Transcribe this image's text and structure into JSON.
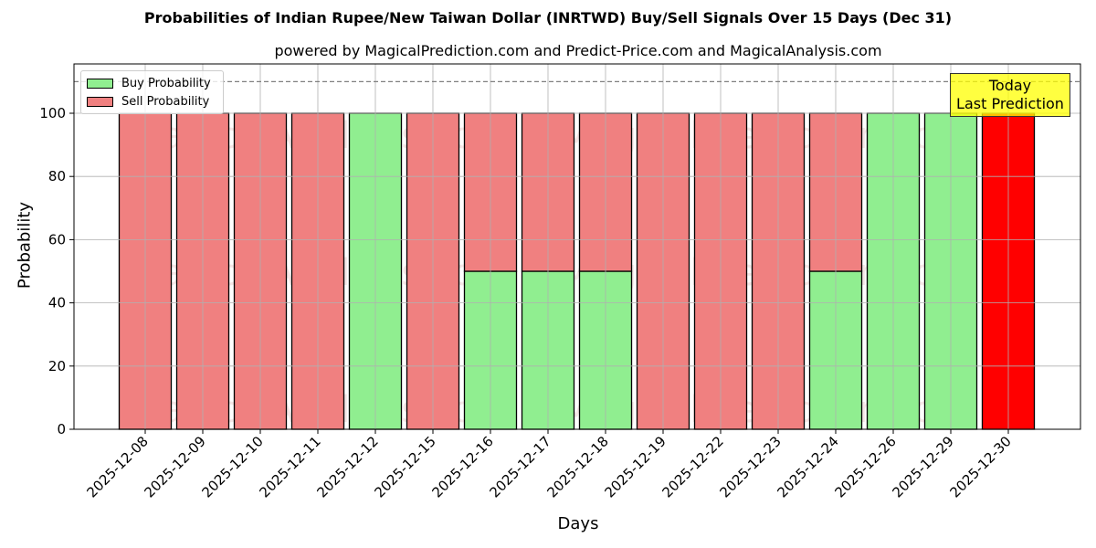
{
  "title": "Probabilities of Indian Rupee/New Taiwan Dollar (INRTWD) Buy/Sell Signals Over 15 Days (Dec 31)",
  "subtitle": "powered by MagicalPrediction.com and Predict-Price.com and MagicalAnalysis.com",
  "annotation": {
    "line1": "Today",
    "line2": "Last Prediction"
  },
  "legend": {
    "buy_label": "Buy Probability",
    "sell_label": "Sell Probability"
  },
  "watermark": [
    "MagicalAnalysis.com",
    "MagicalPrediction.com"
  ],
  "colors": {
    "buy": "#90ee90",
    "sell": "#f08080",
    "today": "#ff0000",
    "annotation_bg": "#ffff40",
    "threshold_line": "#808080"
  },
  "chart_data": {
    "type": "bar",
    "stacked": true,
    "title": "Probabilities of Indian Rupee/New Taiwan Dollar (INRTWD) Buy/Sell Signals Over 15 Days (Dec 31)",
    "subtitle": "powered by MagicalPrediction.com and Predict-Price.com and MagicalAnalysis.com",
    "xlabel": "Days",
    "ylabel": "Probability",
    "ylim": [
      0,
      115
    ],
    "yticks": [
      0,
      20,
      40,
      60,
      80,
      100
    ],
    "grid": true,
    "legend_position": "upper left",
    "threshold_line": 110,
    "categories": [
      "2025-12-08",
      "2025-12-09",
      "2025-12-10",
      "2025-12-11",
      "2025-12-12",
      "2025-12-15",
      "2025-12-16",
      "2025-12-17",
      "2025-12-18",
      "2025-12-19",
      "2025-12-22",
      "2025-12-23",
      "2025-12-24",
      "2025-12-26",
      "2025-12-29",
      "2025-12-30"
    ],
    "series": [
      {
        "name": "Buy Probability",
        "values": [
          0,
          0,
          0,
          0,
          100,
          0,
          50,
          50,
          50,
          0,
          0,
          0,
          50,
          100,
          100,
          0
        ]
      },
      {
        "name": "Sell Probability",
        "values": [
          100,
          100,
          100,
          100,
          0,
          100,
          50,
          50,
          50,
          100,
          100,
          100,
          50,
          0,
          0,
          100
        ]
      }
    ],
    "highlight": {
      "index": 15,
      "label": "Today\nLast Prediction",
      "color": "#ff0000"
    }
  }
}
